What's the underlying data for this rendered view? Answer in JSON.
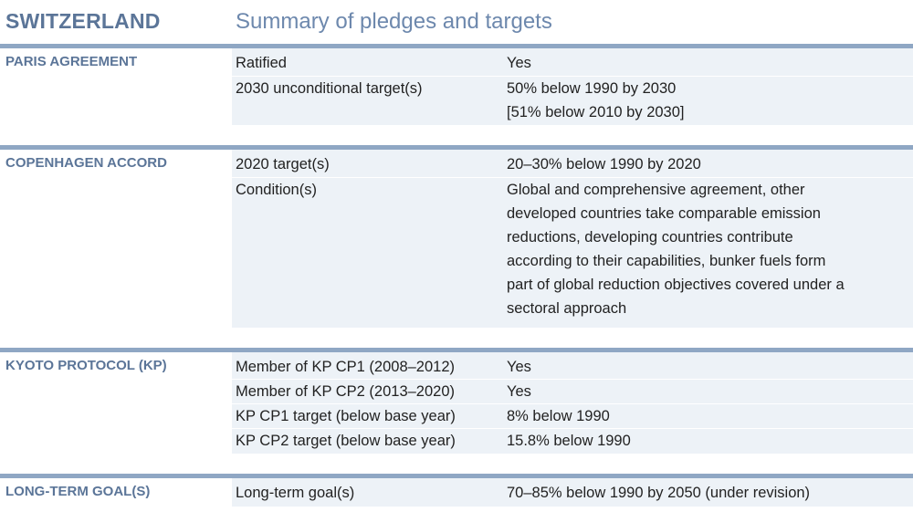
{
  "header": {
    "country": "SWITZERLAND",
    "subtitle": "Summary of pledges and targets"
  },
  "paris": {
    "title": "PARIS AGREEMENT",
    "rows": [
      {
        "label": "Ratified",
        "value": [
          "Yes"
        ]
      },
      {
        "label": "2030 unconditional target(s)",
        "value": [
          "50% below 1990 by 2030",
          "[51% below 2010 by 2030]"
        ]
      }
    ]
  },
  "copenhagen": {
    "title": "COPENHAGEN ACCORD",
    "rows": [
      {
        "label": "2020 target(s)",
        "value": [
          "20–30% below 1990 by 2020"
        ]
      },
      {
        "label": "Condition(s)",
        "value": [
          "Global and comprehensive agreement, other",
          "developed countries take comparable emission",
          "reductions, developing countries contribute",
          "according to their capabilities, bunker fuels form",
          "part of global reduction objectives covered under a",
          "sectoral approach"
        ]
      }
    ]
  },
  "kyoto": {
    "title": "KYOTO PROTOCOL (KP)",
    "rows": [
      {
        "label": "Member of KP CP1 (2008–2012)",
        "value": [
          "Yes"
        ]
      },
      {
        "label": "Member of KP CP2 (2013–2020)",
        "value": [
          "Yes"
        ]
      },
      {
        "label": "KP CP1 target (below base year)",
        "value": [
          "8% below 1990"
        ]
      },
      {
        "label": "KP CP2 target (below base year)",
        "value": [
          "15.8% below 1990"
        ]
      }
    ]
  },
  "longterm": {
    "title": "LONG-TERM GOAL(S)",
    "rows": [
      {
        "label": "Long-term goal(s)",
        "value": [
          "70–85% below 1990 by 2050 (under revision)"
        ]
      }
    ]
  },
  "colors": {
    "accent": "#5b7598",
    "subtitle": "#6d88ad",
    "rule": "#8fa7c4",
    "panel": "#edf2f7"
  }
}
